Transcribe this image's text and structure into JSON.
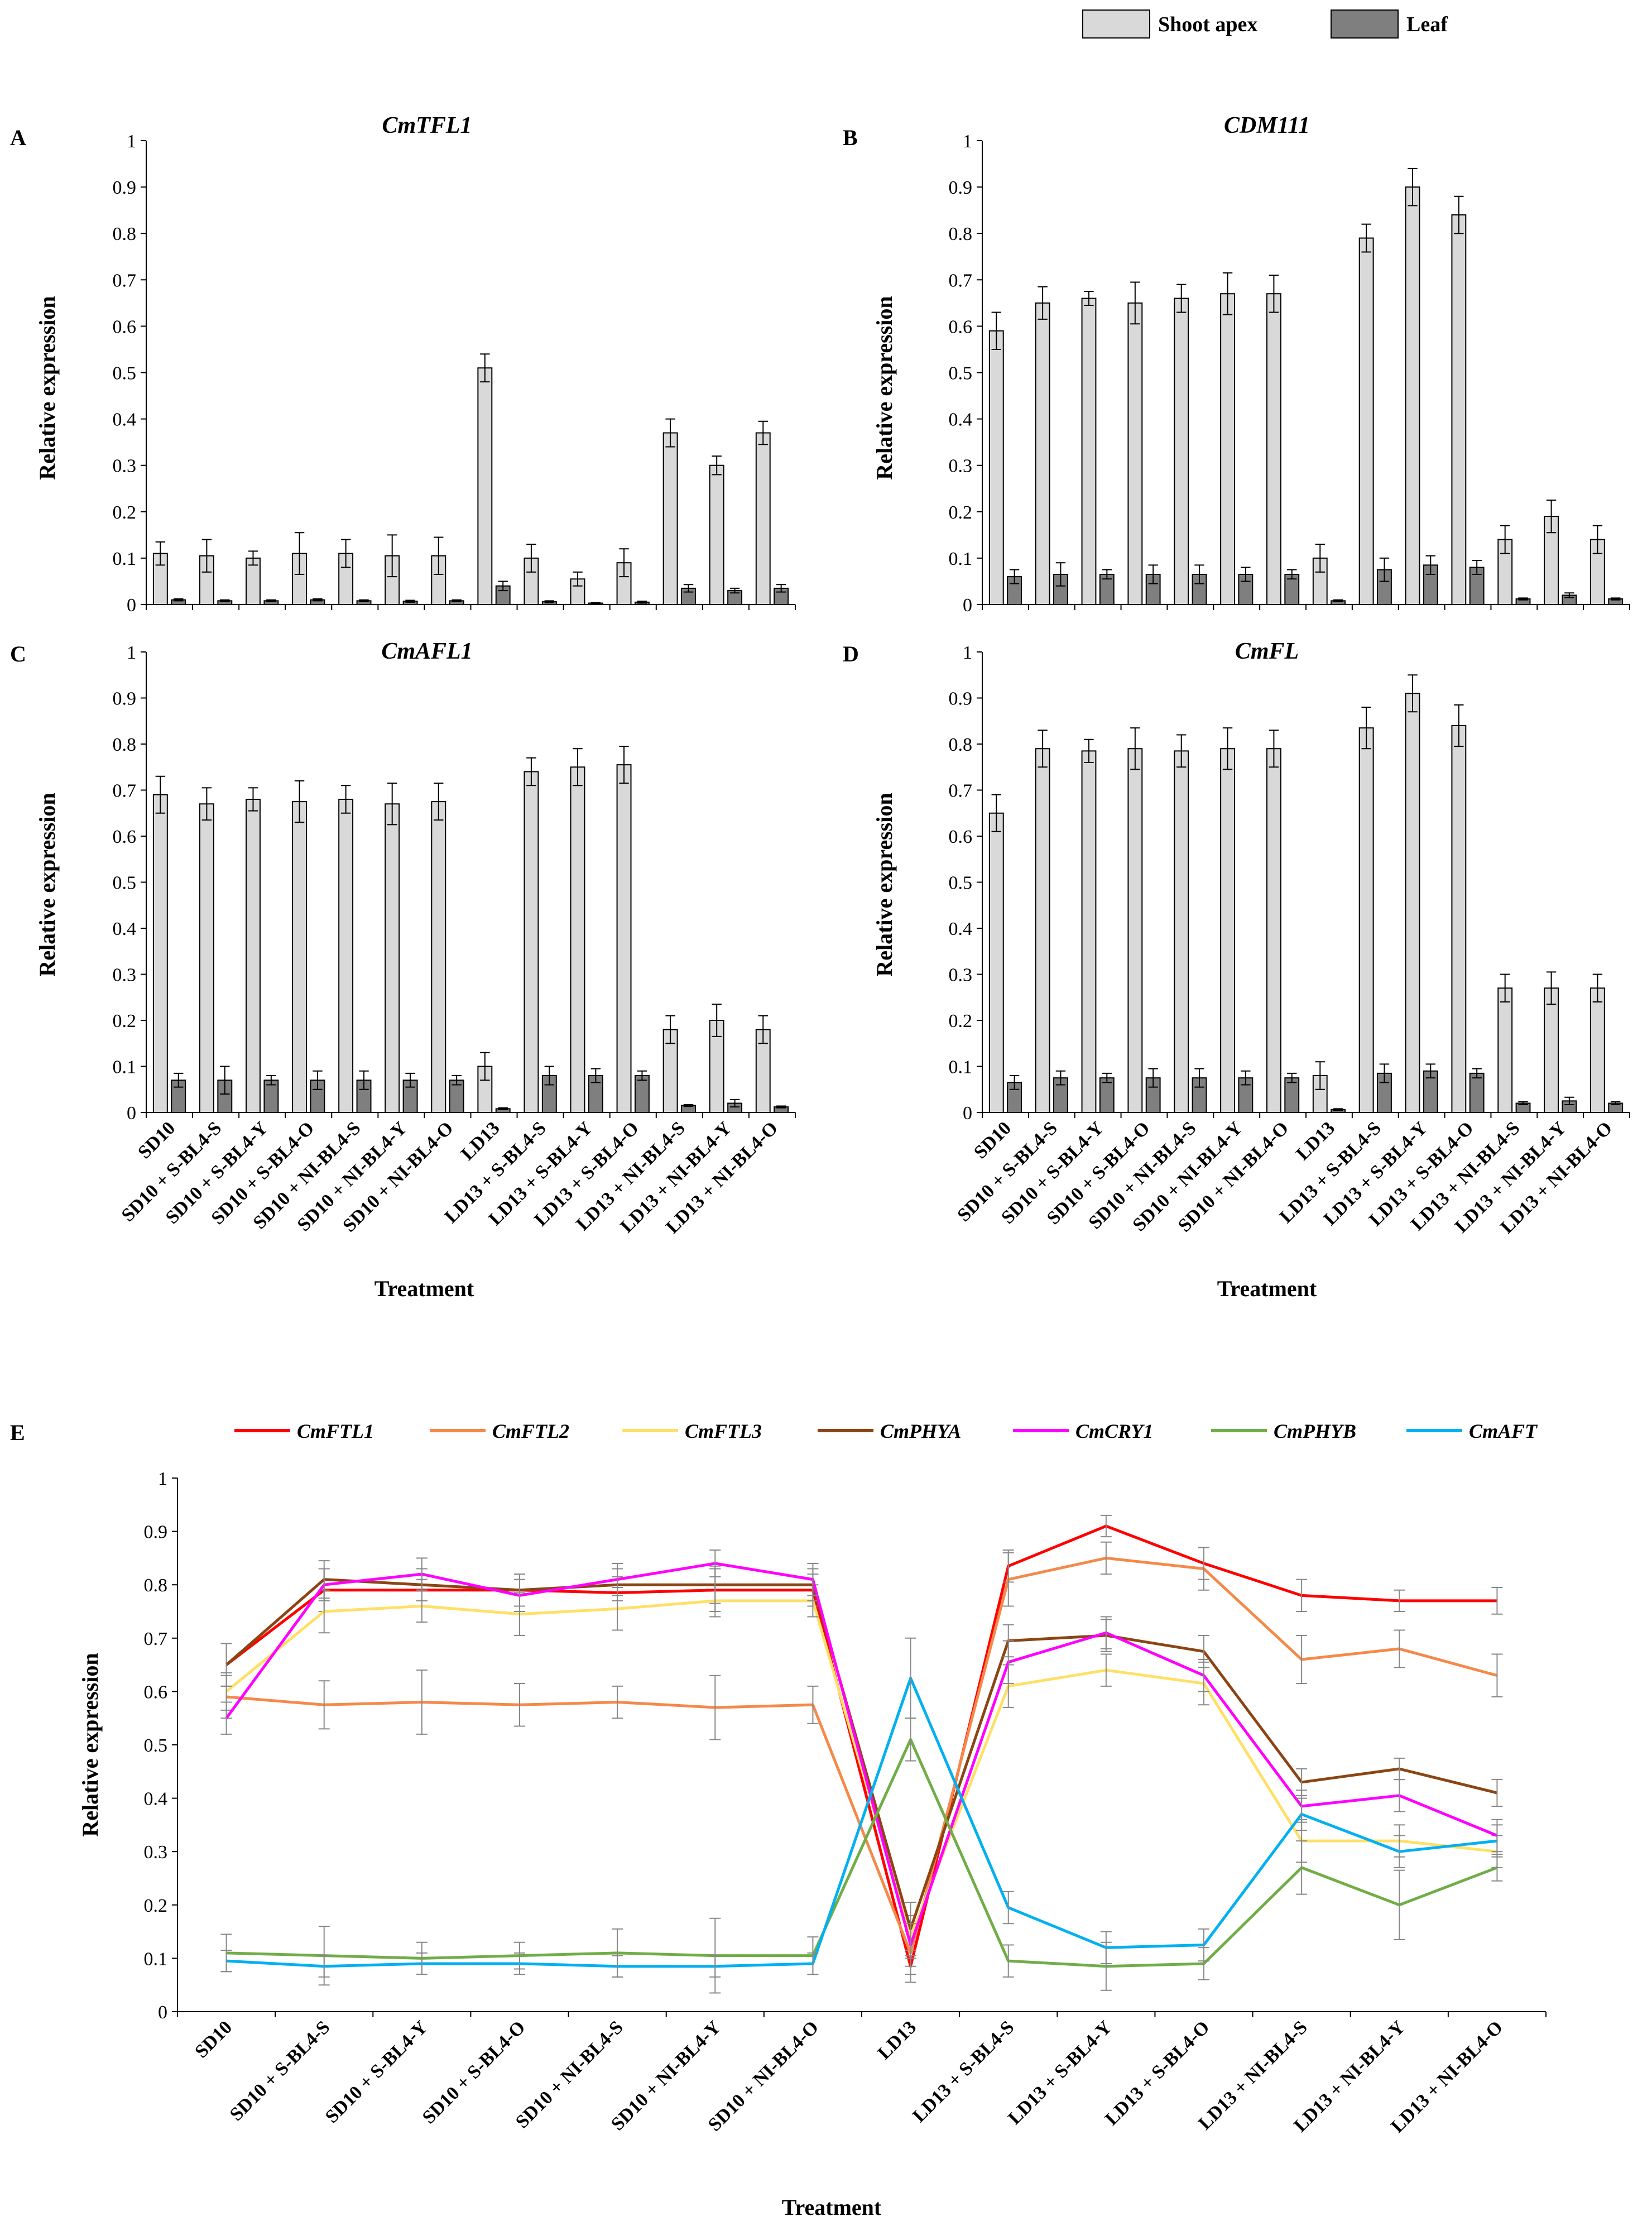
{
  "legend_top": {
    "series": [
      {
        "name": "Shoot apex",
        "color": "#d9d9d9"
      },
      {
        "name": "Leaf",
        "color": "#7f7f7f"
      }
    ]
  },
  "chart_data": [
    {
      "id": "A",
      "panel_label": "A",
      "type": "bar",
      "title": "CmTFL1",
      "ylabel": "Relative expression",
      "xlabel": "",
      "ylim": [
        0,
        1
      ],
      "yticks": [
        "0",
        "0.1",
        "0.2",
        "0.3",
        "0.4",
        "0.5",
        "0.6",
        "0.7",
        "0.8",
        "0.9",
        "1"
      ],
      "categories": [
        "SD10",
        "SD10 + S-BL4-S",
        "SD10 + S-BL4-Y",
        "SD10 + S-BL4-O",
        "SD10 + NI-BL4-S",
        "SD10 + NI-BL4-Y",
        "SD10 + NI-BL4-O",
        "LD13",
        "LD13 + S-BL4-S",
        "LD13 + S-BL4-Y",
        "LD13 + S-BL4-O",
        "LD13 + NI-BL4-S",
        "LD13 + NI-BL4-Y",
        "LD13 + NI-BL4-O"
      ],
      "show_categories": false,
      "series": [
        {
          "name": "Shoot apex",
          "values": [
            0.11,
            0.105,
            0.1,
            0.11,
            0.11,
            0.105,
            0.105,
            0.51,
            0.1,
            0.055,
            0.09,
            0.37,
            0.3,
            0.37
          ],
          "errors": [
            0.025,
            0.035,
            0.015,
            0.045,
            0.03,
            0.045,
            0.04,
            0.03,
            0.03,
            0.015,
            0.03,
            0.03,
            0.02,
            0.025
          ]
        },
        {
          "name": "Leaf",
          "values": [
            0.01,
            0.008,
            0.008,
            0.01,
            0.008,
            0.007,
            0.008,
            0.04,
            0.006,
            0.003,
            0.005,
            0.035,
            0.03,
            0.035
          ],
          "errors": [
            0.002,
            0.002,
            0.002,
            0.002,
            0.002,
            0.002,
            0.002,
            0.01,
            0.002,
            0.001,
            0.002,
            0.008,
            0.005,
            0.008
          ]
        }
      ]
    },
    {
      "id": "B",
      "panel_label": "B",
      "type": "bar",
      "title": "CDM111",
      "ylabel": "Relative expression",
      "xlabel": "",
      "ylim": [
        0,
        1
      ],
      "yticks": [
        "0",
        "0.1",
        "0.2",
        "0.3",
        "0.4",
        "0.5",
        "0.6",
        "0.7",
        "0.8",
        "0.9",
        "1"
      ],
      "categories": [
        "SD10",
        "SD10 + S-BL4-S",
        "SD10 + S-BL4-Y",
        "SD10 + S-BL4-O",
        "SD10 + NI-BL4-S",
        "SD10 + NI-BL4-Y",
        "SD10 + NI-BL4-O",
        "LD13",
        "LD13 + S-BL4-S",
        "LD13 + S-BL4-Y",
        "LD13 + S-BL4-O",
        "LD13 + NI-BL4-S",
        "LD13 + NI-BL4-Y",
        "LD13 + NI-BL4-O"
      ],
      "show_categories": false,
      "series": [
        {
          "name": "Shoot apex",
          "values": [
            0.59,
            0.65,
            0.66,
            0.65,
            0.66,
            0.67,
            0.67,
            0.1,
            0.79,
            0.9,
            0.84,
            0.14,
            0.19,
            0.14
          ],
          "errors": [
            0.04,
            0.035,
            0.015,
            0.045,
            0.03,
            0.045,
            0.04,
            0.03,
            0.03,
            0.04,
            0.04,
            0.03,
            0.035,
            0.03
          ]
        },
        {
          "name": "Leaf",
          "values": [
            0.06,
            0.065,
            0.065,
            0.065,
            0.065,
            0.065,
            0.065,
            0.008,
            0.075,
            0.085,
            0.08,
            0.012,
            0.02,
            0.012
          ],
          "errors": [
            0.015,
            0.025,
            0.01,
            0.02,
            0.02,
            0.015,
            0.01,
            0.002,
            0.025,
            0.02,
            0.015,
            0.002,
            0.005,
            0.002
          ]
        }
      ]
    },
    {
      "id": "C",
      "panel_label": "C",
      "type": "bar",
      "title": "CmAFL1",
      "ylabel": "Relative expression",
      "xlabel": "Treatment",
      "ylim": [
        0,
        1
      ],
      "yticks": [
        "0",
        "0.1",
        "0.2",
        "0.3",
        "0.4",
        "0.5",
        "0.6",
        "0.7",
        "0.8",
        "0.9",
        "1"
      ],
      "categories": [
        "SD10",
        "SD10 + S-BL4-S",
        "SD10 + S-BL4-Y",
        "SD10 + S-BL4-O",
        "SD10 + NI-BL4-S",
        "SD10 + NI-BL4-Y",
        "SD10 + NI-BL4-O",
        "LD13",
        "LD13 + S-BL4-S",
        "LD13 + S-BL4-Y",
        "LD13 + S-BL4-O",
        "LD13 + NI-BL4-S",
        "LD13 + NI-BL4-Y",
        "LD13 + NI-BL4-O"
      ],
      "show_categories": true,
      "series": [
        {
          "name": "Shoot apex",
          "values": [
            0.69,
            0.67,
            0.68,
            0.675,
            0.68,
            0.67,
            0.675,
            0.1,
            0.74,
            0.75,
            0.755,
            0.18,
            0.2,
            0.18
          ],
          "errors": [
            0.04,
            0.035,
            0.025,
            0.045,
            0.03,
            0.045,
            0.04,
            0.03,
            0.03,
            0.04,
            0.04,
            0.03,
            0.035,
            0.03
          ]
        },
        {
          "name": "Leaf",
          "values": [
            0.07,
            0.07,
            0.07,
            0.07,
            0.07,
            0.07,
            0.07,
            0.008,
            0.08,
            0.08,
            0.08,
            0.015,
            0.02,
            0.012
          ],
          "errors": [
            0.015,
            0.03,
            0.01,
            0.02,
            0.02,
            0.015,
            0.01,
            0.002,
            0.02,
            0.015,
            0.01,
            0.002,
            0.008,
            0.002
          ]
        }
      ]
    },
    {
      "id": "D",
      "panel_label": "D",
      "type": "bar",
      "title": "CmFL",
      "ylabel": "Relative expression",
      "xlabel": "Treatment",
      "ylim": [
        0,
        1
      ],
      "yticks": [
        "0",
        "0.1",
        "0.2",
        "0.3",
        "0.4",
        "0.5",
        "0.6",
        "0.7",
        "0.8",
        "0.9",
        "1"
      ],
      "categories": [
        "SD10",
        "SD10 + S-BL4-S",
        "SD10 + S-BL4-Y",
        "SD10 + S-BL4-O",
        "SD10 + NI-BL4-S",
        "SD10 + NI-BL4-Y",
        "SD10 + NI-BL4-O",
        "LD13",
        "LD13 + S-BL4-S",
        "LD13 + S-BL4-Y",
        "LD13 + S-BL4-O",
        "LD13 + NI-BL4-S",
        "LD13 + NI-BL4-Y",
        "LD13 + NI-BL4-O"
      ],
      "show_categories": true,
      "series": [
        {
          "name": "Shoot apex",
          "values": [
            0.65,
            0.79,
            0.785,
            0.79,
            0.785,
            0.79,
            0.79,
            0.08,
            0.835,
            0.91,
            0.84,
            0.27,
            0.27,
            0.27
          ],
          "errors": [
            0.04,
            0.04,
            0.025,
            0.045,
            0.035,
            0.045,
            0.04,
            0.03,
            0.045,
            0.04,
            0.045,
            0.03,
            0.035,
            0.03
          ]
        },
        {
          "name": "Leaf",
          "values": [
            0.065,
            0.075,
            0.075,
            0.075,
            0.075,
            0.075,
            0.075,
            0.006,
            0.085,
            0.09,
            0.085,
            0.02,
            0.025,
            0.02
          ],
          "errors": [
            0.015,
            0.015,
            0.01,
            0.02,
            0.02,
            0.015,
            0.01,
            0.002,
            0.02,
            0.015,
            0.01,
            0.003,
            0.008,
            0.003
          ]
        }
      ]
    },
    {
      "id": "E",
      "panel_label": "E",
      "type": "line",
      "title": "",
      "ylabel": "Relative expression",
      "xlabel": "Treatment",
      "ylim": [
        0,
        1
      ],
      "yticks": [
        "0",
        "0.1",
        "0.2",
        "0.3",
        "0.4",
        "0.5",
        "0.6",
        "0.7",
        "0.8",
        "0.9",
        "1"
      ],
      "categories": [
        "SD10",
        "SD10 + S-BL4-S",
        "SD10 + S-BL4-Y",
        "SD10 + S-BL4-O",
        "SD10 + NI-BL4-S",
        "SD10 + NI-BL4-Y",
        "SD10 + NI-BL4-O",
        "LD13",
        "LD13 + S-BL4-S",
        "LD13 + S-BL4-Y",
        "LD13 + S-BL4-O",
        "LD13 + NI-BL4-S",
        "LD13 + NI-BL4-Y",
        "LD13 + NI-BL4-O"
      ],
      "show_categories": true,
      "series": [
        {
          "name": "CmFTL1",
          "color": "#ff0000",
          "values": [
            0.65,
            0.79,
            0.79,
            0.79,
            0.785,
            0.79,
            0.79,
            0.085,
            0.835,
            0.91,
            0.84,
            0.78,
            0.77,
            0.77
          ],
          "errors": [
            0.04,
            0.04,
            0.02,
            0.03,
            0.03,
            0.04,
            0.03,
            0.03,
            0.03,
            0.02,
            0.03,
            0.03,
            0.02,
            0.025
          ]
        },
        {
          "name": "CmFTL2",
          "color": "#f4894a",
          "values": [
            0.59,
            0.575,
            0.58,
            0.575,
            0.58,
            0.57,
            0.575,
            0.11,
            0.81,
            0.85,
            0.83,
            0.66,
            0.68,
            0.63
          ],
          "errors": [
            0.04,
            0.045,
            0.06,
            0.04,
            0.03,
            0.06,
            0.035,
            0.04,
            0.05,
            0.03,
            0.04,
            0.045,
            0.035,
            0.04
          ]
        },
        {
          "name": "CmFTL3",
          "color": "#ffe066",
          "values": [
            0.6,
            0.75,
            0.76,
            0.745,
            0.755,
            0.77,
            0.77,
            0.14,
            0.61,
            0.64,
            0.615,
            0.32,
            0.32,
            0.3
          ],
          "errors": [
            0.035,
            0.04,
            0.03,
            0.04,
            0.04,
            0.03,
            0.03,
            0.04,
            0.04,
            0.03,
            0.04,
            0.04,
            0.03,
            0.03
          ]
        },
        {
          "name": "CmPHYA",
          "color": "#8b4513",
          "values": [
            0.65,
            0.81,
            0.8,
            0.79,
            0.8,
            0.8,
            0.8,
            0.155,
            0.695,
            0.705,
            0.675,
            0.43,
            0.455,
            0.41
          ],
          "errors": [
            0.04,
            0.035,
            0.03,
            0.03,
            0.03,
            0.035,
            0.03,
            0.05,
            0.03,
            0.03,
            0.03,
            0.025,
            0.02,
            0.025
          ]
        },
        {
          "name": "CmCRY1",
          "color": "#ff00ff",
          "values": [
            0.55,
            0.8,
            0.82,
            0.78,
            0.81,
            0.84,
            0.81,
            0.125,
            0.655,
            0.71,
            0.63,
            0.385,
            0.405,
            0.33
          ],
          "errors": [
            0.03,
            0.03,
            0.03,
            0.03,
            0.03,
            0.025,
            0.03,
            0.04,
            0.04,
            0.03,
            0.03,
            0.03,
            0.03,
            0.03
          ]
        },
        {
          "name": "CmPHYB",
          "color": "#70ad47",
          "values": [
            0.11,
            0.105,
            0.1,
            0.105,
            0.11,
            0.105,
            0.105,
            0.51,
            0.095,
            0.085,
            0.09,
            0.27,
            0.2,
            0.27
          ],
          "errors": [
            0.035,
            0.055,
            0.03,
            0.025,
            0.045,
            0.07,
            0.035,
            0.04,
            0.03,
            0.045,
            0.03,
            0.05,
            0.065,
            0.025
          ]
        },
        {
          "name": "CmAFT",
          "color": "#00b0f0",
          "values": [
            0.095,
            0.085,
            0.09,
            0.09,
            0.085,
            0.085,
            0.09,
            0.625,
            0.195,
            0.12,
            0.125,
            0.37,
            0.3,
            0.32
          ],
          "errors": [
            0.02,
            0.02,
            0.02,
            0.02,
            0.02,
            0.02,
            0.02,
            0.075,
            0.03,
            0.03,
            0.03,
            0.03,
            0.03,
            0.03
          ]
        }
      ]
    }
  ]
}
